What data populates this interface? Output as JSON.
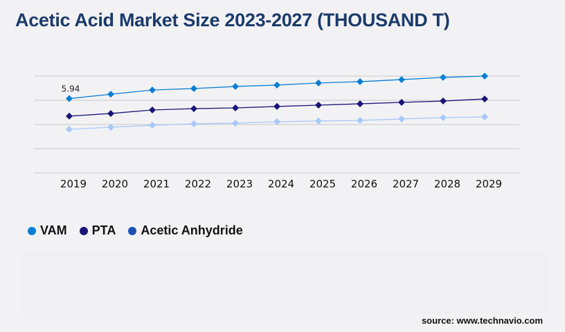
{
  "title": "Acetic Acid Market Size 2023-2027 (THOUSAND T)",
  "source": "source: www.technavio.com",
  "chart_data": {
    "type": "line",
    "title": "Acetic Acid Market Size 2023-2027 (THOUSAND T)",
    "xlabel": "",
    "ylabel": "",
    "categories": [
      "2019",
      "2020",
      "2021",
      "2022",
      "2023",
      "2024",
      "2025",
      "2026",
      "2027",
      "2028",
      "2029"
    ],
    "ylim": [
      0,
      8
    ],
    "grid": true,
    "legend_position": "bottom-left",
    "series": [
      {
        "name": "VAM",
        "color": "#0a7fd4",
        "marker_color": "#0a7fd4",
        "values": [
          5.94,
          6.3,
          6.65,
          6.77,
          6.94,
          7.06,
          7.23,
          7.34,
          7.51,
          7.69,
          7.8
        ]
      },
      {
        "name": "PTA",
        "color": "#1a1478",
        "marker_color": "#1a1478",
        "values": [
          4.49,
          4.71,
          5.0,
          5.11,
          5.17,
          5.29,
          5.4,
          5.51,
          5.63,
          5.74,
          5.91
        ]
      },
      {
        "name": "Acetic Anhydride",
        "color": "#a8c8f8",
        "marker_color": "#1e50b4",
        "values": [
          3.4,
          3.57,
          3.74,
          3.86,
          3.91,
          4.03,
          4.09,
          4.14,
          4.26,
          4.37,
          4.43
        ]
      }
    ],
    "annotations": [
      {
        "series": "VAM",
        "category": "2019",
        "text": "5.94"
      }
    ]
  }
}
